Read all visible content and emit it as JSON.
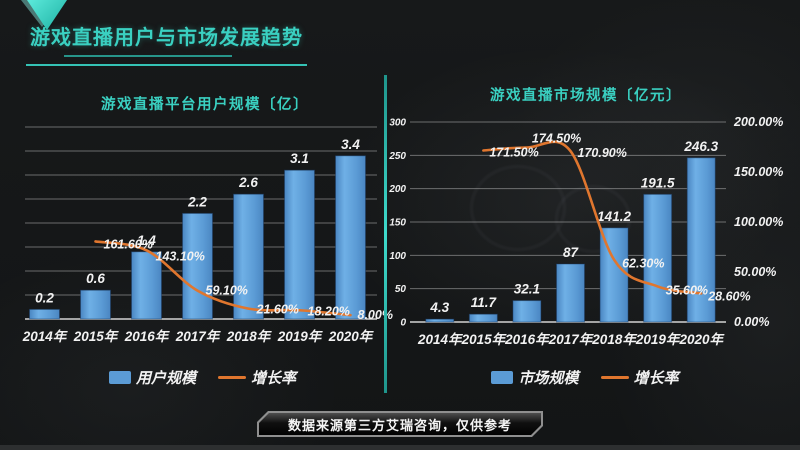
{
  "colors": {
    "accent": "#3ad0c1",
    "bar_blue": "#5b9bd5",
    "line_orange": "#e0762e",
    "divider_teal": "#2cb5a9"
  },
  "header": {
    "title": "游戏直播用户与市场发展趋势"
  },
  "chart_data": [
    {
      "type": "bar-line-combo",
      "title": "游戏直播平台用户规模〔亿〕",
      "categories": [
        "2014年",
        "2015年",
        "2016年",
        "2017年",
        "2018年",
        "2019年",
        "2020年"
      ],
      "bar_series": {
        "name": "用户规模",
        "values": [
          0.2,
          0.6,
          1.4,
          2.2,
          2.6,
          3.1,
          3.4
        ],
        "labels": [
          "0.2",
          "0.6",
          "1.4",
          "2.2",
          "2.6",
          "3.1",
          "3.4"
        ]
      },
      "line_series": {
        "name": "增长率",
        "values": [
          null,
          161.6,
          143.1,
          59.1,
          21.6,
          18.2,
          8.0
        ],
        "labels": [
          null,
          "161.60%",
          "143.10%",
          "59.10%",
          "21.60%",
          "18.20%",
          "8.00%"
        ]
      },
      "left_axis": {
        "min": 0,
        "max": 4,
        "step": 0.5,
        "ticks": []
      },
      "right_axis": {
        "min": 0,
        "max": 400,
        "ticks": []
      },
      "grid": true,
      "legend_position": "bottom"
    },
    {
      "type": "bar-line-combo",
      "title": "游戏直播市场规模〔亿元〕",
      "categories": [
        "2014年",
        "2015年",
        "2016年",
        "2017年",
        "2018年",
        "2019年",
        "2020年"
      ],
      "bar_series": {
        "name": "市场规模",
        "values": [
          4.3,
          11.7,
          32.1,
          87,
          141.2,
          191.5,
          246.3
        ],
        "labels": [
          "4.3",
          "11.7",
          "32.1",
          "87",
          "141.2",
          "191.5",
          "246.3"
        ]
      },
      "line_series": {
        "name": "增长率",
        "values": [
          null,
          171.5,
          174.5,
          170.9,
          62.3,
          35.6,
          28.6
        ],
        "labels": [
          null,
          "171.50%",
          "174.50%",
          "170.90%",
          "62.30%",
          "35.60%",
          "28.60%"
        ]
      },
      "left_axis": {
        "min": 0,
        "max": 300,
        "step": 50,
        "ticks": [
          "300",
          "250",
          "200",
          "150",
          "100",
          "50",
          "0"
        ]
      },
      "right_axis": {
        "min": 0,
        "max": 200,
        "ticks": [
          "200.00%",
          "150.00%",
          "100.00%",
          "50.00%",
          "0.00%"
        ]
      },
      "grid": true,
      "legend_position": "bottom"
    }
  ],
  "footer": {
    "source_note": "数据来源第三方艾瑞咨询，仅供参考"
  }
}
